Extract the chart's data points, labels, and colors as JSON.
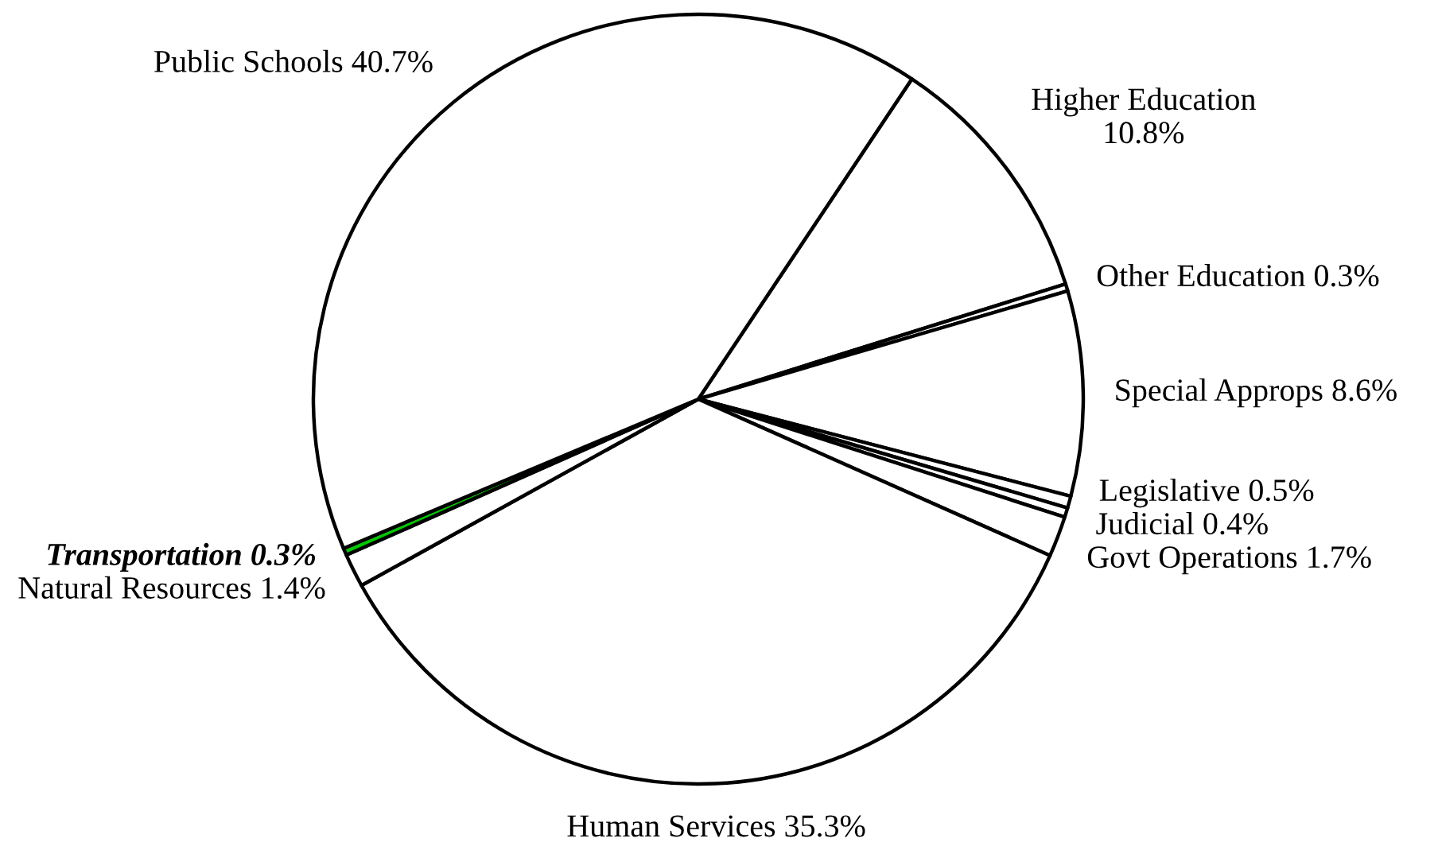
{
  "chart_data": {
    "type": "pie",
    "categories": [
      "Higher Education",
      "Other Education",
      "Special Approps",
      "Legislative",
      "Judicial",
      "Govt Operations",
      "Human Services",
      "Natural Resources",
      "Transportation",
      "Public Schools"
    ],
    "values": [
      10.8,
      0.3,
      8.6,
      0.5,
      0.4,
      1.7,
      35.3,
      1.4,
      0.3,
      40.7
    ],
    "value_labels": [
      "10.8%",
      "0.3%",
      "8.6%",
      "0.5%",
      "0.4%",
      "1.7%",
      "35.3%",
      "1.4%",
      "0.3%",
      "40.7%"
    ],
    "colors": [
      "#ffffff",
      "#ffffff",
      "#ffffff",
      "#ffffff",
      "#ffffff",
      "#ffffff",
      "#ffffff",
      "#ffffff",
      "#00c800",
      "#ffffff"
    ]
  }
}
